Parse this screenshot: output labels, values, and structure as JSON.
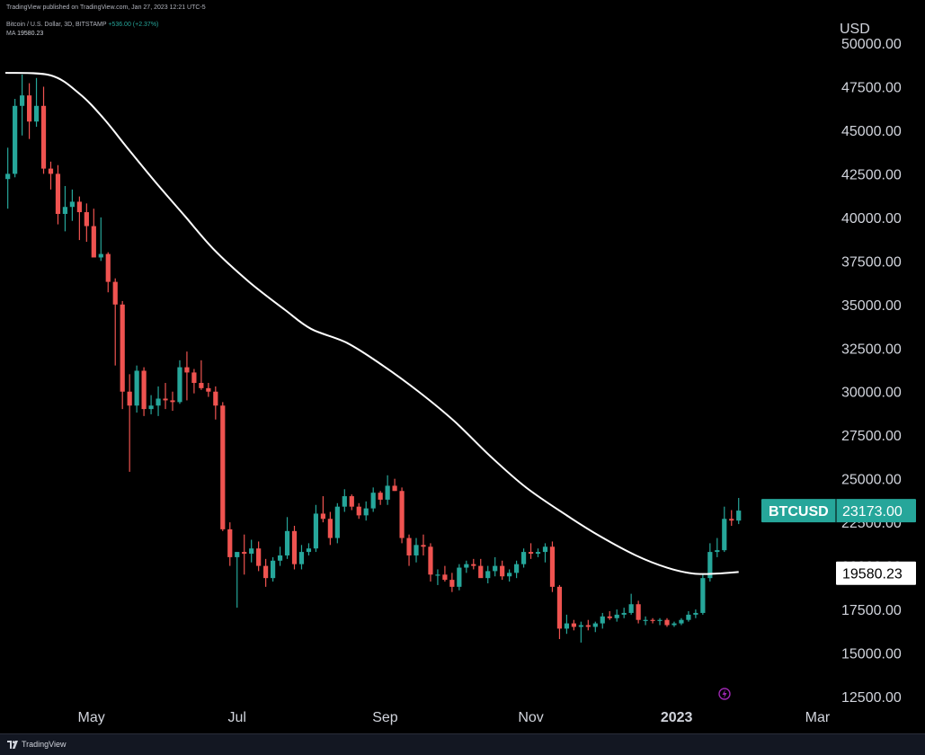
{
  "header": {
    "published": "TradingView published on TradingView.com, Jan 27, 2023 12:21 UTC-5",
    "symbol": "Bitcoin / U.S. Dollar, 3D, BITSTAMP",
    "change": "+536.00 (+2.37%)",
    "ma_label": "MA",
    "ma_value": "19580.23"
  },
  "footer": {
    "brand": "TradingView",
    "logo_icon": "tradingview-logo-icon"
  },
  "colors": {
    "up": "#26a69a",
    "down": "#ef5350",
    "ma": "#ffffff",
    "background": "#000000",
    "axis_text": "#d1d4dc"
  },
  "chart_data": {
    "type": "candlestick",
    "timeframe": "3D",
    "currency": "USD",
    "ylabel": "USD",
    "ylim": [
      12500,
      50000
    ],
    "y_ticks": [
      "50000.00",
      "47500.00",
      "45000.00",
      "42500.00",
      "40000.00",
      "37500.00",
      "35000.00",
      "32500.00",
      "30000.00",
      "27500.00",
      "25000.00",
      "22500.00",
      "20000.00",
      "17500.00",
      "15000.00",
      "12500.00"
    ],
    "x_start": "2022-03-26",
    "x_end": "2023-03-08",
    "x_tick_labels": [
      {
        "date": "2022-05-01",
        "label": "May"
      },
      {
        "date": "2022-07-01",
        "label": "Jul"
      },
      {
        "date": "2022-09-01",
        "label": "Sep"
      },
      {
        "date": "2022-11-01",
        "label": "Nov"
      },
      {
        "date": "2023-01-01",
        "label": "2023"
      },
      {
        "date": "2023-03-01",
        "label": "Mar"
      }
    ],
    "candles": [
      {
        "date": "2022-03-27",
        "open": 42200,
        "high": 44000,
        "low": 40500,
        "close": 42500
      },
      {
        "date": "2022-03-30",
        "open": 42500,
        "high": 46800,
        "low": 42300,
        "close": 46400
      },
      {
        "date": "2022-04-02",
        "open": 46400,
        "high": 48200,
        "low": 44700,
        "close": 47000
      },
      {
        "date": "2022-04-05",
        "open": 47000,
        "high": 47700,
        "low": 44500,
        "close": 45500
      },
      {
        "date": "2022-04-08",
        "open": 45500,
        "high": 48000,
        "low": 45200,
        "close": 46400
      },
      {
        "date": "2022-04-11",
        "open": 46400,
        "high": 47500,
        "low": 42500,
        "close": 42800
      },
      {
        "date": "2022-04-14",
        "open": 42800,
        "high": 43200,
        "low": 41600,
        "close": 42500
      },
      {
        "date": "2022-04-17",
        "open": 42500,
        "high": 43000,
        "low": 39600,
        "close": 40200
      },
      {
        "date": "2022-04-20",
        "open": 40200,
        "high": 41800,
        "low": 39200,
        "close": 40600
      },
      {
        "date": "2022-04-23",
        "open": 40600,
        "high": 41600,
        "low": 39800,
        "close": 40900
      },
      {
        "date": "2022-04-26",
        "open": 40900,
        "high": 41200,
        "low": 38700,
        "close": 40300
      },
      {
        "date": "2022-04-29",
        "open": 40300,
        "high": 40800,
        "low": 38600,
        "close": 39500
      },
      {
        "date": "2022-05-02",
        "open": 39500,
        "high": 40500,
        "low": 37800,
        "close": 37700
      },
      {
        "date": "2022-05-05",
        "open": 37700,
        "high": 40000,
        "low": 37500,
        "close": 37900
      },
      {
        "date": "2022-05-08",
        "open": 37900,
        "high": 38000,
        "low": 35700,
        "close": 36300
      },
      {
        "date": "2022-05-11",
        "open": 36300,
        "high": 36500,
        "low": 31500,
        "close": 35000
      },
      {
        "date": "2022-05-14",
        "open": 35000,
        "high": 35200,
        "low": 29000,
        "close": 30000
      },
      {
        "date": "2022-05-17",
        "open": 30000,
        "high": 31000,
        "low": 25400,
        "close": 29200
      },
      {
        "date": "2022-05-20",
        "open": 29200,
        "high": 31500,
        "low": 28800,
        "close": 31200
      },
      {
        "date": "2022-05-23",
        "open": 31200,
        "high": 31400,
        "low": 28600,
        "close": 29000
      },
      {
        "date": "2022-05-26",
        "open": 29000,
        "high": 29800,
        "low": 28700,
        "close": 29200
      },
      {
        "date": "2022-05-29",
        "open": 29200,
        "high": 30300,
        "low": 28600,
        "close": 29600
      },
      {
        "date": "2022-06-01",
        "open": 29600,
        "high": 30500,
        "low": 29000,
        "close": 29500
      },
      {
        "date": "2022-06-04",
        "open": 29500,
        "high": 30000,
        "low": 28900,
        "close": 29400
      },
      {
        "date": "2022-06-07",
        "open": 29400,
        "high": 31800,
        "low": 29300,
        "close": 31400
      },
      {
        "date": "2022-06-10",
        "open": 31400,
        "high": 32300,
        "low": 29500,
        "close": 31100
      },
      {
        "date": "2022-06-13",
        "open": 31100,
        "high": 31300,
        "low": 29900,
        "close": 30500
      },
      {
        "date": "2022-06-16",
        "open": 30500,
        "high": 31800,
        "low": 30100,
        "close": 30200
      },
      {
        "date": "2022-06-19",
        "open": 30200,
        "high": 30500,
        "low": 29700,
        "close": 30000
      },
      {
        "date": "2022-06-22",
        "open": 30000,
        "high": 30300,
        "low": 28400,
        "close": 29200
      },
      {
        "date": "2022-06-25",
        "open": 29200,
        "high": 29400,
        "low": 22000,
        "close": 22100
      },
      {
        "date": "2022-06-28",
        "open": 22100,
        "high": 22500,
        "low": 20000,
        "close": 20500
      },
      {
        "date": "2022-07-01",
        "open": 20500,
        "high": 20800,
        "low": 17600,
        "close": 20800
      },
      {
        "date": "2022-07-04",
        "open": 20800,
        "high": 21800,
        "low": 19500,
        "close": 20700
      },
      {
        "date": "2022-07-07",
        "open": 20700,
        "high": 21500,
        "low": 20200,
        "close": 21000
      },
      {
        "date": "2022-07-10",
        "open": 21000,
        "high": 21400,
        "low": 19700,
        "close": 20000
      },
      {
        "date": "2022-07-13",
        "open": 20000,
        "high": 20400,
        "low": 18800,
        "close": 19300
      },
      {
        "date": "2022-07-16",
        "open": 19300,
        "high": 20500,
        "low": 19100,
        "close": 20300
      },
      {
        "date": "2022-07-19",
        "open": 20300,
        "high": 21100,
        "low": 20000,
        "close": 20600
      },
      {
        "date": "2022-07-22",
        "open": 20600,
        "high": 22800,
        "low": 20400,
        "close": 22000
      },
      {
        "date": "2022-07-25",
        "open": 22000,
        "high": 22300,
        "low": 19800,
        "close": 20100
      },
      {
        "date": "2022-07-28",
        "open": 20100,
        "high": 21200,
        "low": 19800,
        "close": 20800
      },
      {
        "date": "2022-07-31",
        "open": 20800,
        "high": 21300,
        "low": 20600,
        "close": 21000
      },
      {
        "date": "2022-08-03",
        "open": 21000,
        "high": 23500,
        "low": 20800,
        "close": 23000
      },
      {
        "date": "2022-08-06",
        "open": 23000,
        "high": 24000,
        "low": 22500,
        "close": 22700
      },
      {
        "date": "2022-08-09",
        "open": 22700,
        "high": 23100,
        "low": 21200,
        "close": 21600
      },
      {
        "date": "2022-08-12",
        "open": 21600,
        "high": 23600,
        "low": 21300,
        "close": 23400
      },
      {
        "date": "2022-08-15",
        "open": 23400,
        "high": 24400,
        "low": 23100,
        "close": 24000
      },
      {
        "date": "2022-08-18",
        "open": 24000,
        "high": 24100,
        "low": 23200,
        "close": 23400
      },
      {
        "date": "2022-08-21",
        "open": 23400,
        "high": 23600,
        "low": 22700,
        "close": 22900
      },
      {
        "date": "2022-08-24",
        "open": 22900,
        "high": 23700,
        "low": 22600,
        "close": 23300
      },
      {
        "date": "2022-08-27",
        "open": 23300,
        "high": 24500,
        "low": 23100,
        "close": 24200
      },
      {
        "date": "2022-08-30",
        "open": 24200,
        "high": 24300,
        "low": 23500,
        "close": 23800
      },
      {
        "date": "2022-09-02",
        "open": 23800,
        "high": 25200,
        "low": 23500,
        "close": 24600
      },
      {
        "date": "2022-09-05",
        "open": 24600,
        "high": 25000,
        "low": 24300,
        "close": 24300
      },
      {
        "date": "2022-09-08",
        "open": 24300,
        "high": 24500,
        "low": 21300,
        "close": 21600
      },
      {
        "date": "2022-09-11",
        "open": 21600,
        "high": 21800,
        "low": 20000,
        "close": 20600
      },
      {
        "date": "2022-09-14",
        "open": 20600,
        "high": 21600,
        "low": 20200,
        "close": 21200
      },
      {
        "date": "2022-09-17",
        "open": 21200,
        "high": 21800,
        "low": 20600,
        "close": 21100
      },
      {
        "date": "2022-09-20",
        "open": 21100,
        "high": 21300,
        "low": 19100,
        "close": 19500
      },
      {
        "date": "2022-09-23",
        "open": 19500,
        "high": 19800,
        "low": 18900,
        "close": 19500
      },
      {
        "date": "2022-09-26",
        "open": 19500,
        "high": 20000,
        "low": 19100,
        "close": 19200
      },
      {
        "date": "2022-09-29",
        "open": 19200,
        "high": 19600,
        "low": 18500,
        "close": 18800
      },
      {
        "date": "2022-10-02",
        "open": 18800,
        "high": 20100,
        "low": 18600,
        "close": 19900
      },
      {
        "date": "2022-10-05",
        "open": 19900,
        "high": 20300,
        "low": 19600,
        "close": 20100
      },
      {
        "date": "2022-10-08",
        "open": 20100,
        "high": 20400,
        "low": 19800,
        "close": 20000
      },
      {
        "date": "2022-10-11",
        "open": 20000,
        "high": 20400,
        "low": 19400,
        "close": 19300
      },
      {
        "date": "2022-10-14",
        "open": 19300,
        "high": 20000,
        "low": 19000,
        "close": 19700
      },
      {
        "date": "2022-10-17",
        "open": 19700,
        "high": 20500,
        "low": 19400,
        "close": 20000
      },
      {
        "date": "2022-10-20",
        "open": 20000,
        "high": 20300,
        "low": 19200,
        "close": 19400
      },
      {
        "date": "2022-10-23",
        "open": 19400,
        "high": 19800,
        "low": 19100,
        "close": 19600
      },
      {
        "date": "2022-10-26",
        "open": 19600,
        "high": 20300,
        "low": 19300,
        "close": 20100
      },
      {
        "date": "2022-10-29",
        "open": 20100,
        "high": 21000,
        "low": 19900,
        "close": 20800
      },
      {
        "date": "2022-11-01",
        "open": 20800,
        "high": 21300,
        "low": 20400,
        "close": 20700
      },
      {
        "date": "2022-11-04",
        "open": 20700,
        "high": 21000,
        "low": 20500,
        "close": 20800
      },
      {
        "date": "2022-11-07",
        "open": 20800,
        "high": 21300,
        "low": 20200,
        "close": 21100
      },
      {
        "date": "2022-11-10",
        "open": 21100,
        "high": 21400,
        "low": 18500,
        "close": 18800
      },
      {
        "date": "2022-11-13",
        "open": 18800,
        "high": 18900,
        "low": 15800,
        "close": 16400
      },
      {
        "date": "2022-11-16",
        "open": 16400,
        "high": 17200,
        "low": 16100,
        "close": 16700
      },
      {
        "date": "2022-11-19",
        "open": 16700,
        "high": 16900,
        "low": 16300,
        "close": 16500
      },
      {
        "date": "2022-11-22",
        "open": 16500,
        "high": 16800,
        "low": 15600,
        "close": 16600
      },
      {
        "date": "2022-11-25",
        "open": 16600,
        "high": 16900,
        "low": 16300,
        "close": 16500
      },
      {
        "date": "2022-11-28",
        "open": 16500,
        "high": 16800,
        "low": 16200,
        "close": 16700
      },
      {
        "date": "2022-12-01",
        "open": 16700,
        "high": 17300,
        "low": 16400,
        "close": 17100
      },
      {
        "date": "2022-12-04",
        "open": 17100,
        "high": 17400,
        "low": 16900,
        "close": 17000
      },
      {
        "date": "2022-12-07",
        "open": 17000,
        "high": 17500,
        "low": 16800,
        "close": 17200
      },
      {
        "date": "2022-12-10",
        "open": 17200,
        "high": 17600,
        "low": 17000,
        "close": 17300
      },
      {
        "date": "2022-12-13",
        "open": 17300,
        "high": 18400,
        "low": 17200,
        "close": 17800
      },
      {
        "date": "2022-12-16",
        "open": 17800,
        "high": 18000,
        "low": 16700,
        "close": 16900
      },
      {
        "date": "2022-12-19",
        "open": 16900,
        "high": 17100,
        "low": 16600,
        "close": 16900
      },
      {
        "date": "2022-12-22",
        "open": 16900,
        "high": 17000,
        "low": 16700,
        "close": 16850
      },
      {
        "date": "2022-12-25",
        "open": 16850,
        "high": 17000,
        "low": 16600,
        "close": 16900
      },
      {
        "date": "2022-12-28",
        "open": 16900,
        "high": 17000,
        "low": 16500,
        "close": 16600
      },
      {
        "date": "2022-12-31",
        "open": 16600,
        "high": 16800,
        "low": 16500,
        "close": 16700
      },
      {
        "date": "2023-01-03",
        "open": 16700,
        "high": 17000,
        "low": 16600,
        "close": 16900
      },
      {
        "date": "2023-01-06",
        "open": 16900,
        "high": 17400,
        "low": 16800,
        "close": 17200
      },
      {
        "date": "2023-01-09",
        "open": 17200,
        "high": 17500,
        "low": 17000,
        "close": 17300
      },
      {
        "date": "2023-01-12",
        "open": 17300,
        "high": 19500,
        "low": 17200,
        "close": 19300
      },
      {
        "date": "2023-01-15",
        "open": 19300,
        "high": 21300,
        "low": 19100,
        "close": 20800
      },
      {
        "date": "2023-01-18",
        "open": 20800,
        "high": 21600,
        "low": 20500,
        "close": 20900
      },
      {
        "date": "2023-01-21",
        "open": 20900,
        "high": 23400,
        "low": 20800,
        "close": 22700
      },
      {
        "date": "2023-01-24",
        "open": 22700,
        "high": 23200,
        "low": 22300,
        "close": 22600
      },
      {
        "date": "2023-01-27",
        "open": 22600,
        "high": 23900,
        "low": 22400,
        "close": 23173
      }
    ],
    "moving_average": {
      "label": "MA",
      "last_value": 19580.23,
      "points": [
        {
          "date": "2022-03-26",
          "value": 48300
        },
        {
          "date": "2022-04-14",
          "value": 48150
        },
        {
          "date": "2022-04-26",
          "value": 47100
        },
        {
          "date": "2022-05-06",
          "value": 45700
        },
        {
          "date": "2022-05-16",
          "value": 44000
        },
        {
          "date": "2022-05-28",
          "value": 42000
        },
        {
          "date": "2022-06-09",
          "value": 40100
        },
        {
          "date": "2022-06-21",
          "value": 38200
        },
        {
          "date": "2022-07-06",
          "value": 36300
        },
        {
          "date": "2022-07-21",
          "value": 34700
        },
        {
          "date": "2022-08-01",
          "value": 33600
        },
        {
          "date": "2022-08-16",
          "value": 32800
        },
        {
          "date": "2022-08-31",
          "value": 31500
        },
        {
          "date": "2022-09-15",
          "value": 30000
        },
        {
          "date": "2022-09-30",
          "value": 28300
        },
        {
          "date": "2022-10-15",
          "value": 26300
        },
        {
          "date": "2022-10-30",
          "value": 24500
        },
        {
          "date": "2022-11-16",
          "value": 22900
        },
        {
          "date": "2022-11-30",
          "value": 21700
        },
        {
          "date": "2022-12-15",
          "value": 20600
        },
        {
          "date": "2022-12-28",
          "value": 19900
        },
        {
          "date": "2023-01-08",
          "value": 19560
        },
        {
          "date": "2023-01-18",
          "value": 19560
        },
        {
          "date": "2023-01-27",
          "value": 19650
        }
      ]
    },
    "price_labels": [
      {
        "name": "BTCUSD",
        "value": "23173.00",
        "price": 23173
      },
      {
        "name": "",
        "value": "19580.23",
        "price": 19580.23
      }
    ],
    "grid": false,
    "annotation_icon": "lightning-icon"
  }
}
